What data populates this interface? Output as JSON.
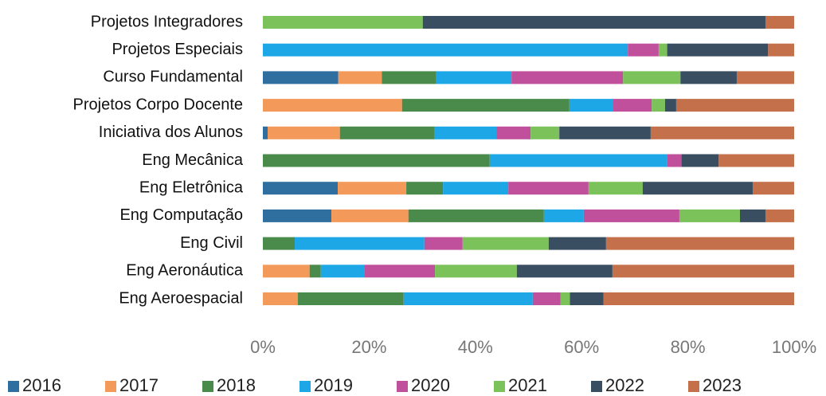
{
  "chart_data": {
    "type": "stacked-bar-horizontal",
    "categories": [
      "Projetos Integradores",
      "Projetos Especiais",
      "Curso Fundamental",
      "Projetos Corpo Docente",
      "Iniciativa dos Alunos",
      "Eng Mecânica",
      "Eng Eletrônica",
      "Eng Computação",
      "Eng Civil",
      "Eng Aeronáutica",
      "Eng Aeroespacial"
    ],
    "series": [
      {
        "name": "2016",
        "color": "#2f6f9f",
        "values": [
          0,
          0,
          14.2,
          0,
          0.9,
          0,
          14.1,
          12.9,
          0,
          0,
          0
        ]
      },
      {
        "name": "2017",
        "color": "#f39a5b",
        "values": [
          0,
          0,
          8.2,
          26.2,
          13.6,
          0,
          12.9,
          14.5,
          0,
          8.8,
          6.6
        ]
      },
      {
        "name": "2018",
        "color": "#4a8a4a",
        "values": [
          0,
          0,
          10.2,
          31.5,
          17.8,
          42.7,
          6.9,
          25.5,
          6.0,
          2.1,
          19.9
        ]
      },
      {
        "name": "2019",
        "color": "#1ea7e6",
        "values": [
          0,
          68.7,
          14.2,
          8.2,
          11.7,
          33.4,
          12.3,
          7.5,
          24.4,
          8.2,
          24.3
        ]
      },
      {
        "name": "2020",
        "color": "#c04f9c",
        "values": [
          0,
          5.8,
          21.0,
          7.3,
          6.4,
          2.7,
          15.1,
          18.0,
          7.2,
          13.3,
          5.2
        ]
      },
      {
        "name": "2021",
        "color": "#7cc25a",
        "values": [
          30.1,
          1.6,
          10.8,
          2.5,
          5.4,
          0,
          10.2,
          11.4,
          16.2,
          15.4,
          1.8
        ]
      },
      {
        "name": "2022",
        "color": "#3a4e62",
        "values": [
          64.5,
          19.0,
          10.6,
          2.1,
          17.2,
          7.0,
          20.7,
          4.8,
          10.8,
          18.0,
          6.3
        ]
      },
      {
        "name": "2023",
        "color": "#c4704a",
        "values": [
          5.4,
          4.9,
          10.8,
          22.2,
          27.0,
          14.2,
          7.8,
          5.4,
          35.4,
          34.2,
          35.9
        ]
      }
    ],
    "xlim": [
      0,
      100
    ],
    "xticks": [
      {
        "value": 0,
        "label": "0%"
      },
      {
        "value": 20,
        "label": "20%"
      },
      {
        "value": 40,
        "label": "40%"
      },
      {
        "value": 60,
        "label": "60%"
      },
      {
        "value": 80,
        "label": "80%"
      },
      {
        "value": 100,
        "label": "100%"
      }
    ],
    "legend": "bottom"
  }
}
